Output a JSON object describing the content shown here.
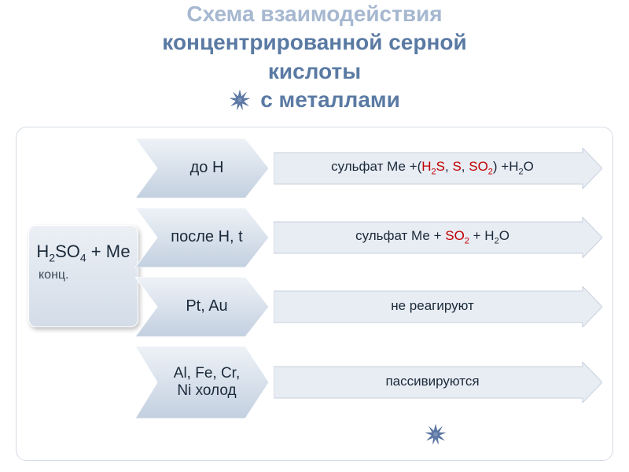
{
  "title": {
    "line1": "Схема взаимодействия",
    "line2": "концентрированной серной",
    "line3": "кислоты",
    "line4": "с металлами"
  },
  "colors": {
    "title_faded": "#a6b8d0",
    "title_main": "#5a7aa3",
    "box_grad_top": "#ecf0f5",
    "box_grad_bot": "#d3dce8",
    "chevron_grad_top": "#eef2f7",
    "chevron_grad_bot": "#c3d0e0",
    "arrow_fill": "#e8ecf3",
    "arrow_stroke": "#c9d2de",
    "text": "#1b2a3a",
    "red": "#c00000",
    "star_fill": "#5d79a8",
    "frame_border": "#d6dce4"
  },
  "root": {
    "formula_html": "H<sub>2</sub>SO<sub>4</sub> + Ме",
    "conc": "конц."
  },
  "rows": [
    {
      "chevron_html": "до H",
      "result_html": "сульфат Ме +(<span class='red'>H<sub>2</sub>S</span>, <span class='red'>S</span>, <span class='red'>SO<sub>2</sub></span>) +H<sub>2</sub>O"
    },
    {
      "chevron_html": "после H, t",
      "result_html": "сульфат Ме + <span class='red'>SO<sub>2</sub></span> + H<sub>2</sub>O"
    },
    {
      "chevron_html": "Pt, Au",
      "result_html": "не реагируют"
    },
    {
      "chevron_html": "Al, Fe, Cr,<br>Ni холод",
      "result_html": "пассивируются"
    }
  ]
}
